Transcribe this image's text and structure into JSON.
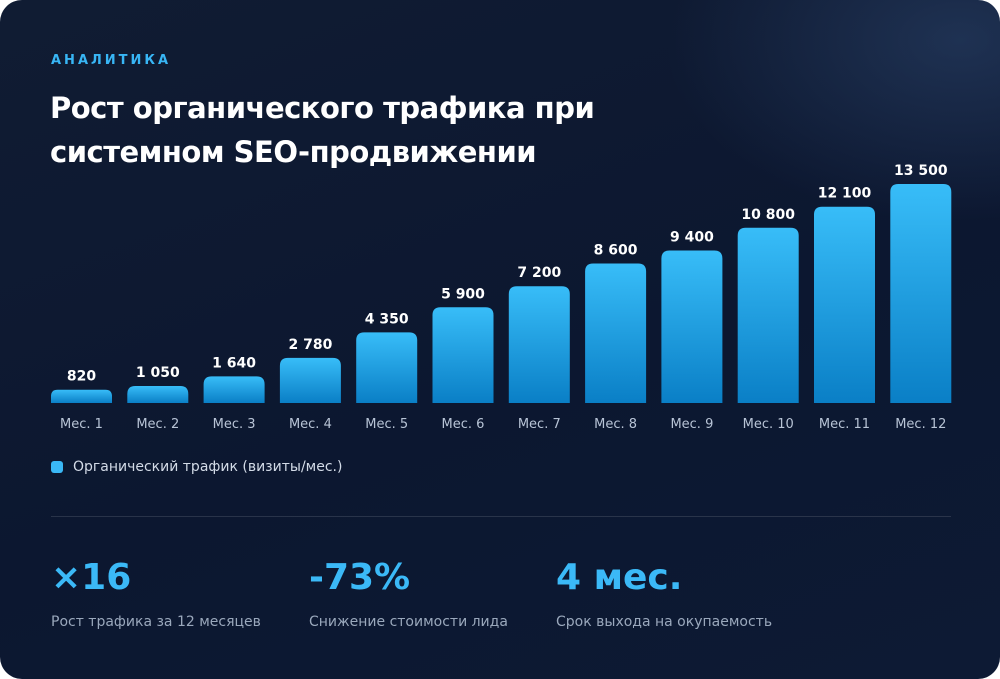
{
  "header": {
    "eyebrow": "АНАЛИТИКА",
    "title": "Рост органического трафика при системном SEO-продвижении"
  },
  "chart_data": {
    "type": "bar",
    "categories": [
      "Мес. 1",
      "Мес. 2",
      "Мес. 3",
      "Мес. 4",
      "Мес. 5",
      "Мес. 6",
      "Мес. 7",
      "Мес. 8",
      "Мес. 9",
      "Мес. 10",
      "Мес. 11",
      "Мес. 12"
    ],
    "series": [
      {
        "name": "Органический трафик (визиты/мес.)",
        "values": [
          820,
          1050,
          1640,
          2780,
          4350,
          5900,
          7200,
          8600,
          9400,
          10800,
          12100,
          13500
        ]
      }
    ],
    "value_labels": [
      "820",
      "1 050",
      "1 640",
      "2 780",
      "4 350",
      "5 900",
      "7 200",
      "8 600",
      "9 400",
      "10 800",
      "12 100",
      "13 500"
    ],
    "ylim": [
      0,
      13500
    ],
    "grid": false,
    "legend_position": "bottom-left",
    "bar_color_top": "#38bdf8",
    "bar_color_bottom": "#0a7fc6"
  },
  "legend": {
    "label": "Органический трафик (визиты/мес.)",
    "color": "#3ab8f6"
  },
  "stats": [
    {
      "value": "×16",
      "caption": "Рост трафика за 12 месяцев"
    },
    {
      "value": "-73%",
      "caption": "Снижение стоимости лида"
    },
    {
      "value": "4 мес.",
      "caption": "Срок выхода на окупаемость"
    }
  ],
  "colors": {
    "accent": "#3bb9f7",
    "background": "#0c1730"
  }
}
